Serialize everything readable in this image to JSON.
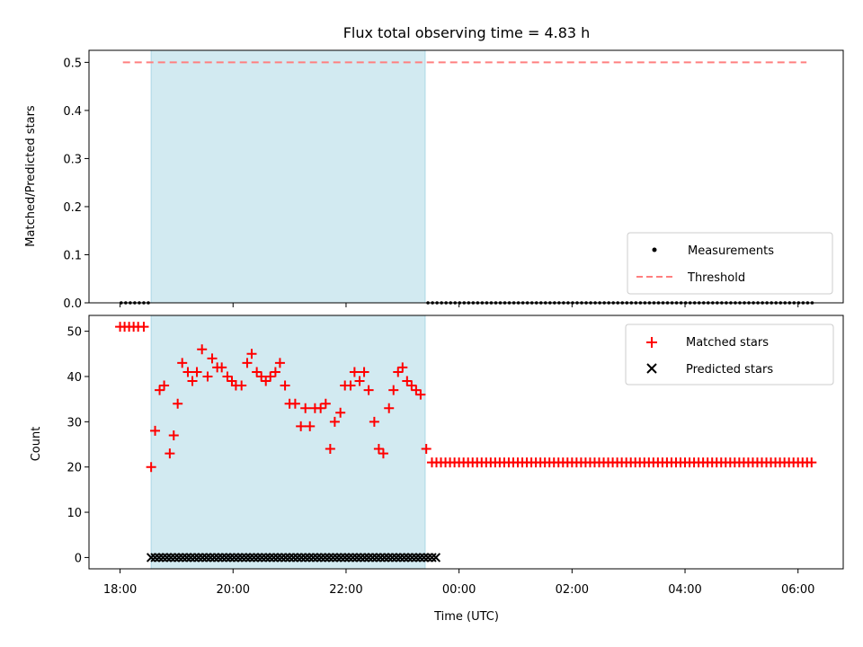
{
  "chart_data": {
    "title": "Flux total observing time = 4.83 h",
    "xlabel": "Time (UTC)",
    "x_unit": "hours",
    "x_ticks": [
      {
        "value": 18,
        "label": "18:00"
      },
      {
        "value": 20,
        "label": "20:00"
      },
      {
        "value": 22,
        "label": "22:00"
      },
      {
        "value": 24,
        "label": "00:00"
      },
      {
        "value": 26,
        "label": "02:00"
      },
      {
        "value": 28,
        "label": "04:00"
      },
      {
        "value": 30,
        "label": "06:00"
      }
    ],
    "xlim": [
      17.45,
      30.8
    ],
    "shaded_span": {
      "start": 18.55,
      "end": 23.4,
      "color": "#add8e6"
    },
    "top_panel": {
      "type": "scatter",
      "ylabel": "Matched/Predicted stars",
      "ylim": [
        0,
        0.525
      ],
      "yticks": [
        "0.0",
        "0.1",
        "0.2",
        "0.3",
        "0.4",
        "0.5"
      ],
      "ytick_values": [
        0,
        0.1,
        0.2,
        0.3,
        0.4,
        0.5
      ],
      "legend_position": "lower-right",
      "measurements": {
        "name": "Measurements",
        "color": "#000000",
        "ranges": [
          {
            "start": 18.02,
            "end": 18.5,
            "step": 0.08,
            "value": 0
          },
          {
            "start": 23.45,
            "end": 30.25,
            "step": 0.08,
            "value": 0
          }
        ]
      },
      "threshold": {
        "name": "Threshold",
        "value": 0.5,
        "x_start": 18.05,
        "x_end": 30.15,
        "color": "#ff7f7f"
      }
    },
    "bottom_panel": {
      "type": "scatter",
      "ylabel": "Count",
      "ylim": [
        -2.5,
        53.5
      ],
      "yticks": [
        "0",
        "10",
        "20",
        "30",
        "40",
        "50"
      ],
      "ytick_values": [
        0,
        10,
        20,
        30,
        40,
        50
      ],
      "legend_position": "upper-right",
      "matched": {
        "name": "Matched stars",
        "color": "#ff0000",
        "points": [
          [
            18.0,
            51
          ],
          [
            18.08,
            51
          ],
          [
            18.16,
            51
          ],
          [
            18.24,
            51
          ],
          [
            18.32,
            51
          ],
          [
            18.42,
            51
          ],
          [
            18.55,
            20
          ],
          [
            18.62,
            28
          ],
          [
            18.7,
            37
          ],
          [
            18.78,
            38
          ],
          [
            18.88,
            23
          ],
          [
            18.95,
            27
          ],
          [
            19.02,
            34
          ],
          [
            19.1,
            43
          ],
          [
            19.2,
            41
          ],
          [
            19.28,
            39
          ],
          [
            19.36,
            41
          ],
          [
            19.45,
            46
          ],
          [
            19.55,
            40
          ],
          [
            19.63,
            44
          ],
          [
            19.72,
            42
          ],
          [
            19.8,
            42
          ],
          [
            19.9,
            40
          ],
          [
            19.98,
            39
          ],
          [
            20.05,
            38
          ],
          [
            20.15,
            38
          ],
          [
            20.25,
            43
          ],
          [
            20.33,
            45
          ],
          [
            20.42,
            41
          ],
          [
            20.5,
            40
          ],
          [
            20.58,
            39
          ],
          [
            20.66,
            40
          ],
          [
            20.75,
            41
          ],
          [
            20.83,
            43
          ],
          [
            20.92,
            38
          ],
          [
            21.0,
            34
          ],
          [
            21.1,
            34
          ],
          [
            21.2,
            29
          ],
          [
            21.28,
            33
          ],
          [
            21.36,
            29
          ],
          [
            21.45,
            33
          ],
          [
            21.55,
            33
          ],
          [
            21.64,
            34
          ],
          [
            21.72,
            24
          ],
          [
            21.8,
            30
          ],
          [
            21.9,
            32
          ],
          [
            21.98,
            38
          ],
          [
            22.08,
            38
          ],
          [
            22.15,
            41
          ],
          [
            22.24,
            39
          ],
          [
            22.32,
            41
          ],
          [
            22.4,
            37
          ],
          [
            22.5,
            30
          ],
          [
            22.58,
            24
          ],
          [
            22.66,
            23
          ],
          [
            22.76,
            33
          ],
          [
            22.84,
            37
          ],
          [
            22.92,
            41
          ],
          [
            23.0,
            42
          ],
          [
            23.08,
            39
          ],
          [
            23.16,
            38
          ],
          [
            23.24,
            37
          ],
          [
            23.32,
            36
          ],
          [
            23.42,
            24
          ]
        ],
        "tail": {
          "start": 23.52,
          "end": 30.25,
          "step": 0.08,
          "value": 21
        }
      },
      "predicted": {
        "name": "Predicted stars",
        "color": "#000000",
        "range": {
          "start": 18.55,
          "end": 23.6,
          "step": 0.07,
          "value": 0
        }
      }
    }
  }
}
